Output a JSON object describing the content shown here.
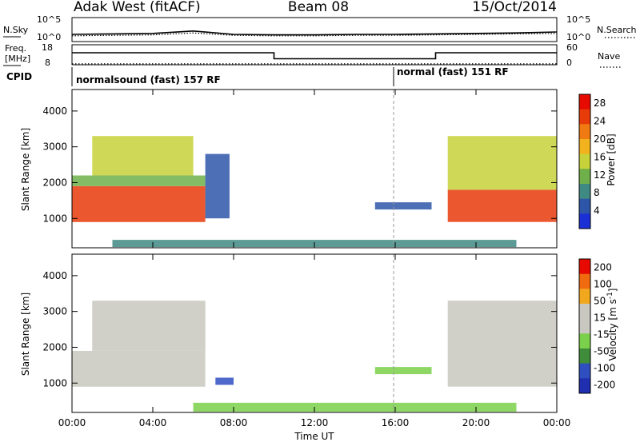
{
  "header": {
    "station": "Adak West (fitACF)",
    "beam": "Beam 08",
    "date": "15/Oct/2014"
  },
  "colors": {
    "power_scale": [
      "#1b2fd6",
      "#2d56a8",
      "#3f8a82",
      "#6fb04a",
      "#c7d23a",
      "#f2b21e",
      "#f07a12",
      "#e83b0a",
      "#e60a00"
    ],
    "velocity_scale": [
      "#1f2fb0",
      "#2f4fc0",
      "#3f8c3a",
      "#7ad04a",
      "#c8c8c0",
      "#c8c8c0",
      "#f2a81e",
      "#f06a10",
      "#e80a00"
    ],
    "line": "#000000"
  },
  "chart_data": [
    {
      "type": "line",
      "panel": "noise",
      "left_label": "N.Sky",
      "right_label": "N.Search",
      "left_ticks": [
        "10^5",
        "10^0"
      ],
      "right_ticks": [
        "10^5",
        "10^0"
      ],
      "x": [
        0,
        2,
        4,
        6,
        8,
        10,
        12,
        14,
        16,
        18,
        20,
        22,
        24
      ],
      "sky_noise": [
        1.5,
        1.6,
        1.7,
        2.2,
        1.5,
        1.4,
        1.4,
        1.5,
        1.5,
        1.6,
        1.7,
        1.8,
        2.0
      ],
      "search_noise": [
        1.2,
        1.3,
        1.4,
        1.8,
        1.3,
        1.2,
        1.2,
        1.3,
        1.3,
        1.4,
        1.5,
        1.6,
        1.7
      ],
      "ylim": [
        0,
        5
      ]
    },
    {
      "type": "line",
      "panel": "frequency_nave",
      "left_label": "Freq. [MHz]",
      "right_label": "Nave",
      "left_ticks": [
        "18",
        "8"
      ],
      "right_ticks": [
        "60",
        "0"
      ],
      "frequency": {
        "x": [
          0,
          10,
          10,
          18,
          18,
          24
        ],
        "values": [
          14,
          14,
          11,
          11,
          14,
          14
        ]
      },
      "nave": {
        "x": [
          0,
          24
        ],
        "values": [
          3,
          3
        ]
      },
      "freq_ylim": [
        8,
        18
      ]
    },
    {
      "type": "table",
      "panel": "cpid",
      "label": "CPID",
      "segments": [
        {
          "start": 0,
          "end": 16,
          "text": "normalsound (fast) 157 RF"
        },
        {
          "start": 16,
          "end": 24,
          "text": "normal (fast) 151 RF"
        }
      ]
    },
    {
      "type": "heatmap",
      "panel": "power",
      "ylabel": "Slant Range [km]",
      "ylim": [
        180,
        4600
      ],
      "yticks": [
        "1000",
        "2000",
        "3000",
        "4000"
      ],
      "colorbar_label": "Power [dB]",
      "colorbar_ticks": [
        "4",
        "8",
        "12",
        "16",
        "20",
        "24",
        "28"
      ],
      "colorbar_range": [
        0,
        30
      ],
      "regions": [
        {
          "t0": 0.0,
          "t1": 6.6,
          "r0": 900,
          "r1": 1900,
          "level": 26
        },
        {
          "t0": 0.0,
          "t1": 6.6,
          "r0": 1900,
          "r1": 2200,
          "level": 12
        },
        {
          "t0": 1.0,
          "t1": 6.0,
          "r0": 2200,
          "r1": 3300,
          "level": 14
        },
        {
          "t0": 6.6,
          "t1": 7.8,
          "r0": 1000,
          "r1": 2800,
          "level": 6
        },
        {
          "t0": 15.0,
          "t1": 17.8,
          "r0": 1250,
          "r1": 1450,
          "level": 6
        },
        {
          "t0": 18.6,
          "t1": 24.0,
          "r0": 900,
          "r1": 1800,
          "level": 26
        },
        {
          "t0": 18.6,
          "t1": 24.0,
          "r0": 1800,
          "r1": 3300,
          "level": 14
        },
        {
          "t0": 2.0,
          "t1": 22.0,
          "r0": 200,
          "r1": 400,
          "level": 8
        }
      ]
    },
    {
      "type": "heatmap",
      "panel": "velocity",
      "ylabel": "Slant Range [km]",
      "ylim": [
        180,
        4600
      ],
      "yticks": [
        "1000",
        "2000",
        "3000",
        "4000"
      ],
      "colorbar_label": "Velocity [m s^-1]",
      "colorbar_ticks": [
        "200",
        "100",
        "50",
        "15",
        "-15",
        "-50",
        "-100",
        "-200"
      ],
      "colorbar_range": [
        -250,
        250
      ],
      "regions": [
        {
          "t0": 0.0,
          "t1": 6.6,
          "r0": 900,
          "r1": 1900,
          "level": 0
        },
        {
          "t0": 1.0,
          "t1": 6.6,
          "r0": 1900,
          "r1": 3300,
          "level": 0
        },
        {
          "t0": 7.1,
          "t1": 8.0,
          "r0": 950,
          "r1": 1150,
          "level": -150
        },
        {
          "t0": 15.0,
          "t1": 17.8,
          "r0": 1250,
          "r1": 1450,
          "level": -60
        },
        {
          "t0": 18.6,
          "t1": 24.0,
          "r0": 900,
          "r1": 3300,
          "level": 0
        },
        {
          "t0": 6.0,
          "t1": 22.0,
          "r0": 200,
          "r1": 450,
          "level": -60
        }
      ],
      "xlabel": "Time UT",
      "xticks": [
        "00:00",
        "04:00",
        "08:00",
        "12:00",
        "16:00",
        "20:00",
        "00:00"
      ],
      "xlim": [
        0,
        24
      ]
    }
  ]
}
